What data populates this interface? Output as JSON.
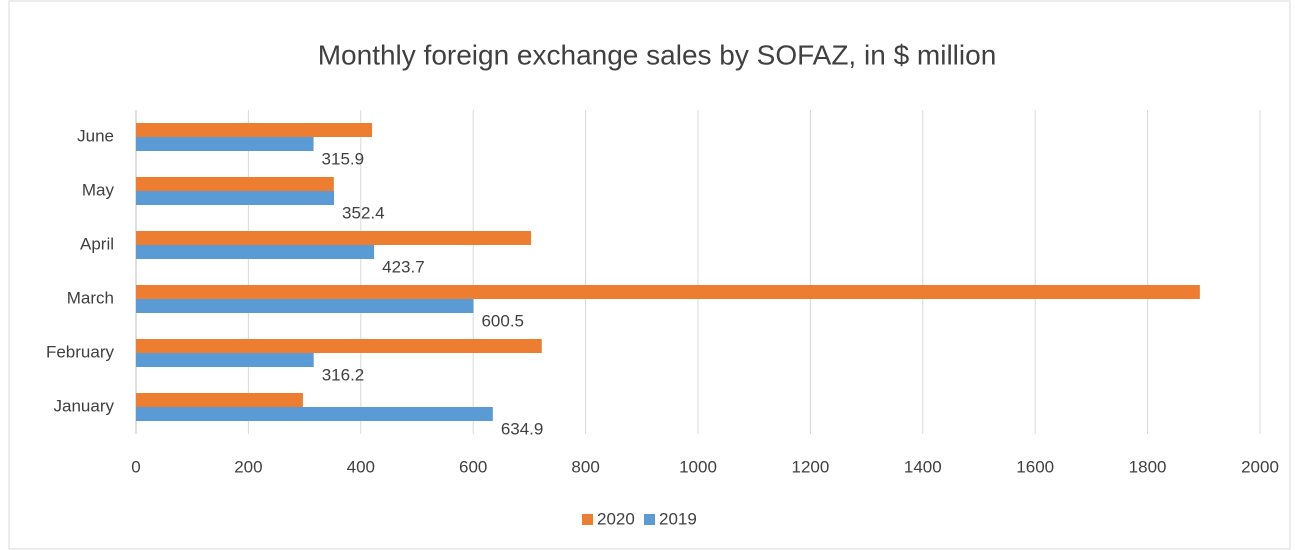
{
  "chart_data": {
    "type": "hbar",
    "title": "Monthly foreign exchange sales by SOFAZ, in $ million",
    "categories": [
      "January",
      "February",
      "March",
      "April",
      "May",
      "June"
    ],
    "series": [
      {
        "name": "2020",
        "color": "#ed7d31",
        "values": [
          297,
          722,
          1893,
          703,
          352,
          420
        ]
      },
      {
        "name": "2019",
        "color": "#5b9bd5",
        "values": [
          634.9,
          316.2,
          600.5,
          423.7,
          352.4,
          315.9
        ],
        "labels": true
      }
    ],
    "xlim": [
      0,
      2000
    ],
    "xticks": [
      0,
      200,
      400,
      600,
      800,
      1000,
      1200,
      1400,
      1600,
      1800,
      2000
    ],
    "grid": true,
    "legend": "bottom"
  }
}
